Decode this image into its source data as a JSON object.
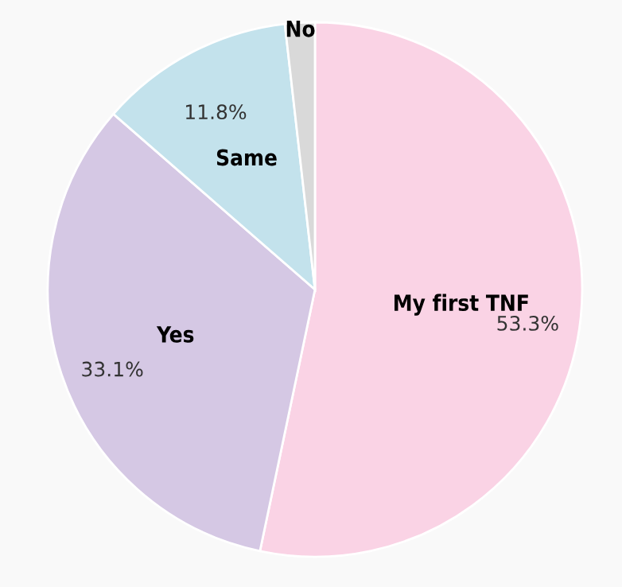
{
  "chart_data": {
    "type": "pie",
    "categories": [
      "My first TNF",
      "Yes",
      "Same",
      "No"
    ],
    "values": [
      53.3,
      33.1,
      11.8,
      1.8
    ],
    "colors": [
      "#fad3e5",
      "#d5c8e4",
      "#c3e2ec",
      "#d9d9d9"
    ],
    "value_labels": [
      "53.3%",
      "33.1%",
      "11.8%",
      null
    ]
  }
}
